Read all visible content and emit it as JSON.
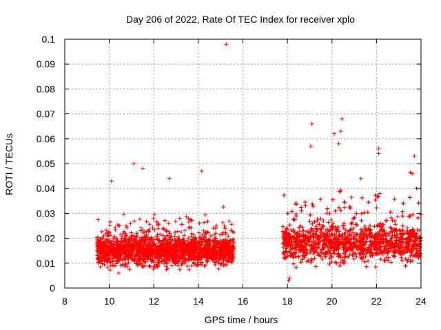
{
  "chart_data": {
    "type": "scatter",
    "title": "Day 206 of 2022, Rate Of TEC Index for receiver xplo",
    "xlabel": "GPS time / hours",
    "ylabel": "ROTI / TECUs",
    "xlim": [
      8,
      24
    ],
    "ylim": [
      0,
      0.1
    ],
    "x_ticks": [
      8,
      10,
      12,
      14,
      16,
      18,
      20,
      22,
      24
    ],
    "y_ticks": [
      0,
      0.01,
      0.02,
      0.03,
      0.04,
      0.05,
      0.06,
      0.07,
      0.08,
      0.09,
      0.1
    ],
    "x_tick_labels": [
      "8",
      "10",
      "12",
      "14",
      "16",
      "18",
      "20",
      "22",
      "24"
    ],
    "y_tick_labels": [
      "0",
      "0.01",
      "0.02",
      "0.03",
      "0.04",
      "0.05",
      "0.06",
      "0.07",
      "0.08",
      "0.09",
      "0.1"
    ],
    "grid": true,
    "marker": "+",
    "color": "#ff0000",
    "series": [
      {
        "name": "ROTI",
        "segments": [
          {
            "start": 9.45,
            "end": 15.6,
            "base": 0.015,
            "spread": 0.004,
            "peak_scale": 0.01
          },
          {
            "start": 17.8,
            "end": 24.0,
            "base": 0.018,
            "spread": 0.005,
            "peak_scale": 0.016
          }
        ],
        "outliers": [
          {
            "x": 15.25,
            "y": 0.098
          },
          {
            "x": 10.1,
            "y": 0.043
          },
          {
            "x": 11.1,
            "y": 0.05
          },
          {
            "x": 11.5,
            "y": 0.048
          },
          {
            "x": 12.7,
            "y": 0.044
          },
          {
            "x": 14.15,
            "y": 0.047
          },
          {
            "x": 19.1,
            "y": 0.066
          },
          {
            "x": 20.1,
            "y": 0.062
          },
          {
            "x": 20.45,
            "y": 0.068
          },
          {
            "x": 20.4,
            "y": 0.063
          },
          {
            "x": 20.3,
            "y": 0.058
          },
          {
            "x": 19.05,
            "y": 0.057
          },
          {
            "x": 22.1,
            "y": 0.056
          },
          {
            "x": 22.1,
            "y": 0.054
          },
          {
            "x": 23.7,
            "y": 0.053
          },
          {
            "x": 23.6,
            "y": 0.046
          },
          {
            "x": 21.3,
            "y": 0.044
          },
          {
            "x": 22.15,
            "y": 0.038
          },
          {
            "x": 23.8,
            "y": 0.04
          },
          {
            "x": 18.1,
            "y": 0.004
          },
          {
            "x": 18.05,
            "y": 0.003
          }
        ]
      }
    ]
  }
}
